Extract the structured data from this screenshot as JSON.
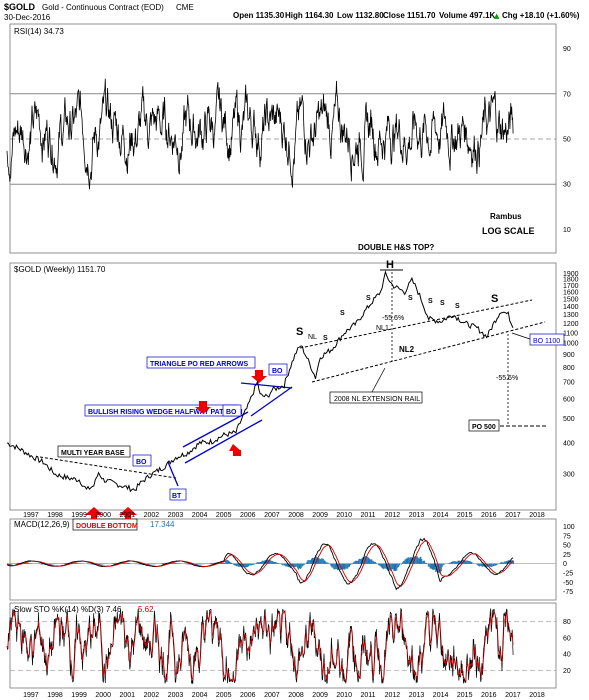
{
  "header": {
    "symbol": "$GOLD",
    "name": "Gold - Continuous Contract (EOD)",
    "exchange": "CME",
    "date": "30-Dec-2016",
    "open": "Open 1135.30",
    "high": "High 1164.30",
    "low": "Low 1132.80",
    "close": "Close 1151.70",
    "volume": "Volume 497.1K",
    "change": "Chg +18.10 (+1.60%)",
    "change_arrow": "▲"
  },
  "colors": {
    "price": "#000000",
    "annotation_blue": "#0000cc",
    "arrow_red": "#ee0000",
    "macd_hist": "#1f77b4",
    "signal_red": "#cc0000",
    "grid": "#c8c8c8"
  },
  "chart_data": [
    {
      "type": "line",
      "panel": "rsi",
      "legend": "RSI(14) 34.73",
      "y_ticks": [
        "90",
        "70",
        "50",
        "30",
        "10"
      ],
      "ylim": [
        0,
        100
      ],
      "levels": [
        70,
        50,
        30
      ],
      "annotations": [
        "Rambus",
        "LOG SCALE",
        "DOUBLE H&S TOP?"
      ]
    },
    {
      "type": "line",
      "panel": "price",
      "legend": "$GOLD (Weekly) 1151.70",
      "scale": "log",
      "ylim": [
        220,
        2050
      ],
      "y_ticks": [
        "1900",
        "1800",
        "1700",
        "1600",
        "1500",
        "1400",
        "1300",
        "1200",
        "1100",
        "1000",
        "900",
        "800",
        "700",
        "600",
        "500",
        "400",
        "300"
      ],
      "x": [
        1996.0,
        1996.5,
        1997.0,
        1997.5,
        1998.0,
        1998.5,
        1999.0,
        1999.3,
        1999.6,
        1999.8,
        2000.0,
        2000.5,
        2001.0,
        2001.3,
        2001.6,
        2002.0,
        2002.5,
        2003.0,
        2003.5,
        2004.0,
        2004.5,
        2005.0,
        2005.5,
        2006.0,
        2006.4,
        2006.5,
        2006.8,
        2007.0,
        2007.5,
        2008.0,
        2008.2,
        2008.5,
        2008.8,
        2009.0,
        2009.5,
        2010.0,
        2010.5,
        2011.0,
        2011.5,
        2011.7,
        2012.0,
        2012.5,
        2012.8,
        2013.0,
        2013.3,
        2013.5,
        2014.0,
        2014.5,
        2015.0,
        2015.5,
        2015.9,
        2016.0,
        2016.5,
        2016.8,
        2016.99
      ],
      "values": [
        400,
        380,
        355,
        335,
        300,
        290,
        285,
        260,
        270,
        305,
        285,
        275,
        265,
        260,
        280,
        300,
        320,
        350,
        365,
        400,
        405,
        430,
        440,
        560,
        700,
        620,
        610,
        650,
        680,
        920,
        980,
        850,
        730,
        880,
        950,
        1100,
        1200,
        1400,
        1600,
        1880,
        1700,
        1600,
        1780,
        1650,
        1400,
        1250,
        1220,
        1300,
        1200,
        1150,
        1060,
        1100,
        1350,
        1300,
        1151.7
      ],
      "x_ticks": [
        "1997",
        "1998",
        "1999",
        "2000",
        "2001",
        "2002",
        "2003",
        "2004",
        "2005",
        "2006",
        "2007",
        "2008",
        "2009",
        "2010",
        "2011",
        "2012",
        "2013",
        "2014",
        "2015",
        "2016",
        "2017",
        "2018"
      ],
      "annotations": [
        "H",
        "S",
        "S",
        "S",
        "S",
        "S",
        "S",
        "S",
        "S",
        "S",
        "NL",
        "NL1",
        "NL2",
        "-55.6%",
        "-55.6%",
        "2008 NL EXTENSION RAIL",
        "TRIANGLE PO RED ARROWS",
        "BULLISH RISING WEDGE HALFWAY PATTERN",
        "MULTI YEAR BASE",
        "DOUBLE BOTTOM",
        "BO",
        "BO",
        "BO",
        "BT",
        "BO 1100",
        "PO 500"
      ]
    },
    {
      "type": "line",
      "panel": "macd",
      "legend": "MACD(12,26,9)",
      "legend_value": "17.344",
      "y_ticks": [
        "100",
        "75",
        "50",
        "25",
        "0",
        "-25",
        "-50",
        "-75"
      ],
      "ylim": [
        -95,
        115
      ]
    },
    {
      "type": "line",
      "panel": "stochastic",
      "legend": "Slow STO %K(14) %D(3) 7.46,",
      "legend_value": "5.62",
      "y_ticks": [
        "80",
        "60",
        "40",
        "20"
      ],
      "ylim": [
        0,
        100
      ],
      "levels": [
        80,
        20
      ],
      "x_ticks": [
        "1997",
        "1998",
        "1999",
        "2000",
        "2001",
        "2002",
        "2003",
        "2004",
        "2005",
        "2006",
        "2007",
        "2008",
        "2009",
        "2010",
        "2011",
        "2012",
        "2013",
        "2014",
        "2015",
        "2016",
        "2017",
        "2018"
      ]
    }
  ]
}
